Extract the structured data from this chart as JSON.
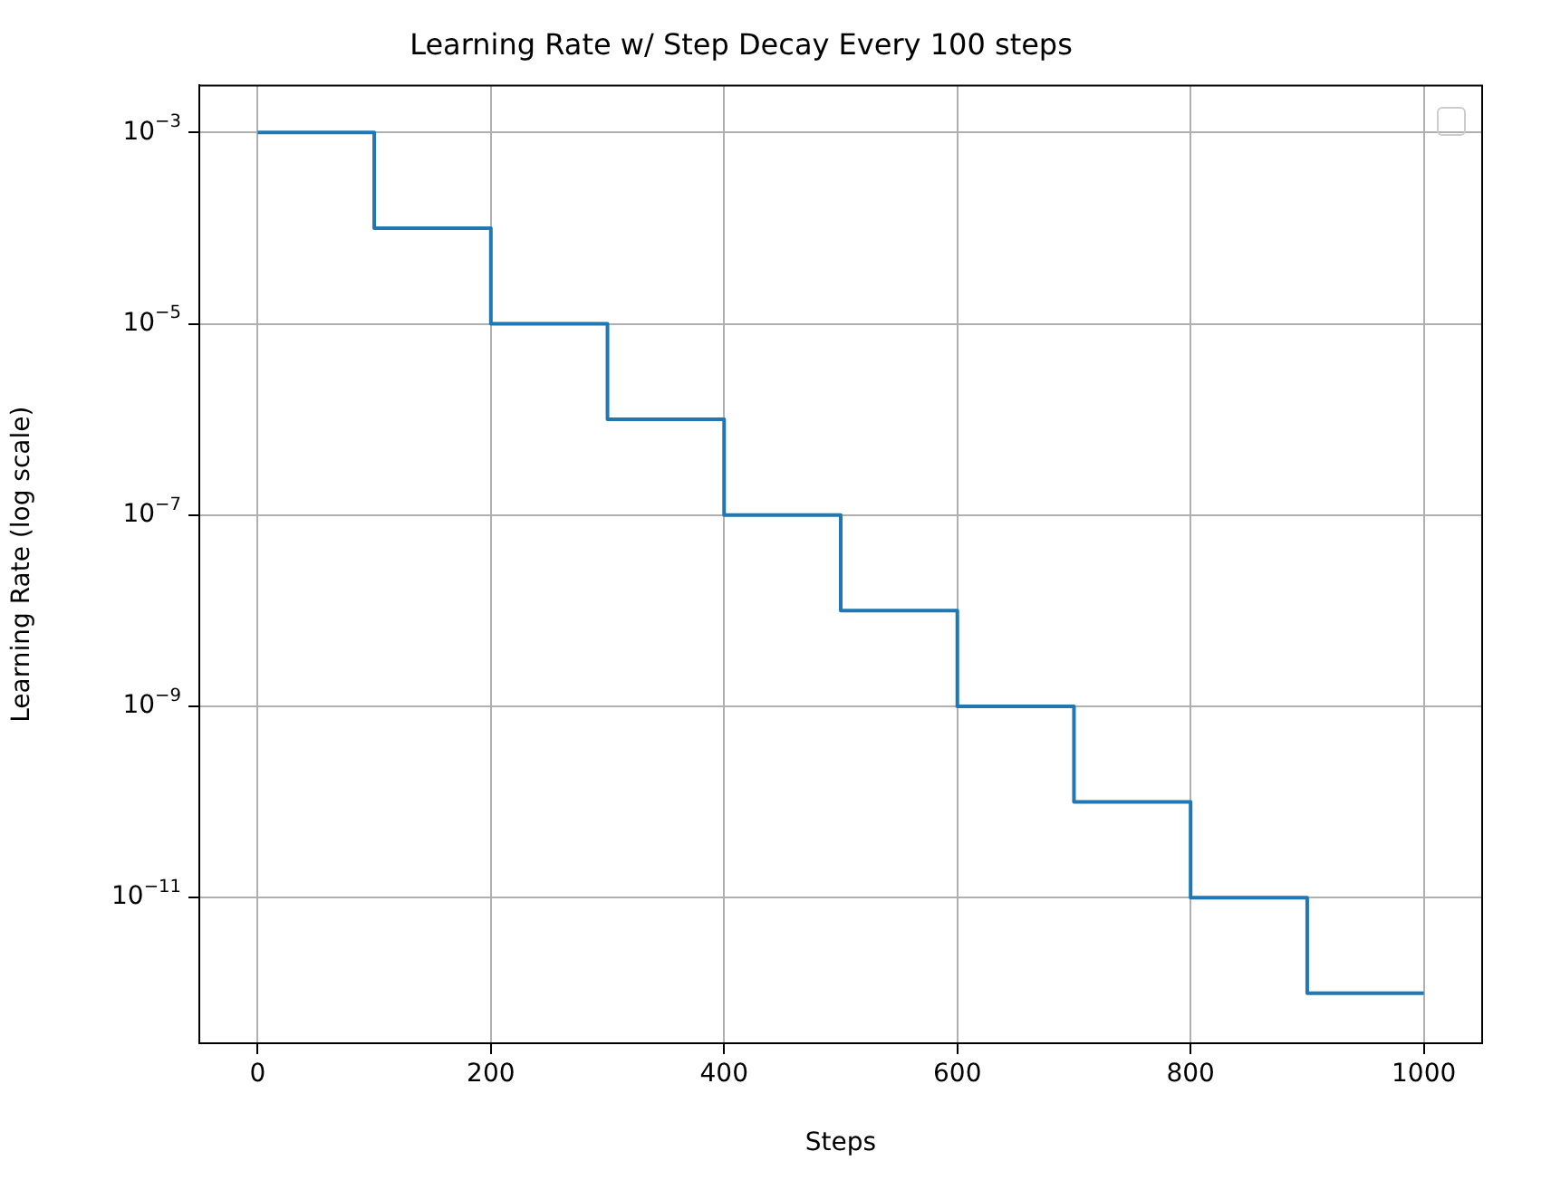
{
  "chart_data": {
    "type": "step",
    "title": "Learning Rate w/ Step Decay Every 100 steps",
    "xlabel": "Steps",
    "ylabel": "Learning Rate (log scale)",
    "log": "y",
    "x": [
      0,
      100,
      200,
      300,
      400,
      500,
      600,
      700,
      800,
      900,
      1000
    ],
    "series": [
      {
        "color": "#1f77b4",
        "values": [
          0.001,
          0.0001,
          1e-05,
          1e-06,
          1e-07,
          1e-08,
          1e-09,
          1e-10,
          1e-11,
          1e-12,
          1e-12
        ]
      }
    ],
    "xlim": [
      -50,
      1050
    ],
    "xticks": [
      0,
      200,
      400,
      600,
      800,
      1000
    ],
    "ylim": [
      3.4e-13,
      0.0031
    ],
    "yticks": [
      {
        "value": 0.001,
        "label": "10$^{−3}$"
      },
      {
        "value": 1e-05,
        "label": "10$^{−5}$"
      },
      {
        "value": 1e-07,
        "label": "10$^{−7}$"
      },
      {
        "value": 1e-09,
        "label": "10$^{−9}$"
      },
      {
        "value": 1e-11,
        "label": "10$^{−11}$"
      }
    ],
    "grid": true,
    "legend": false
  }
}
